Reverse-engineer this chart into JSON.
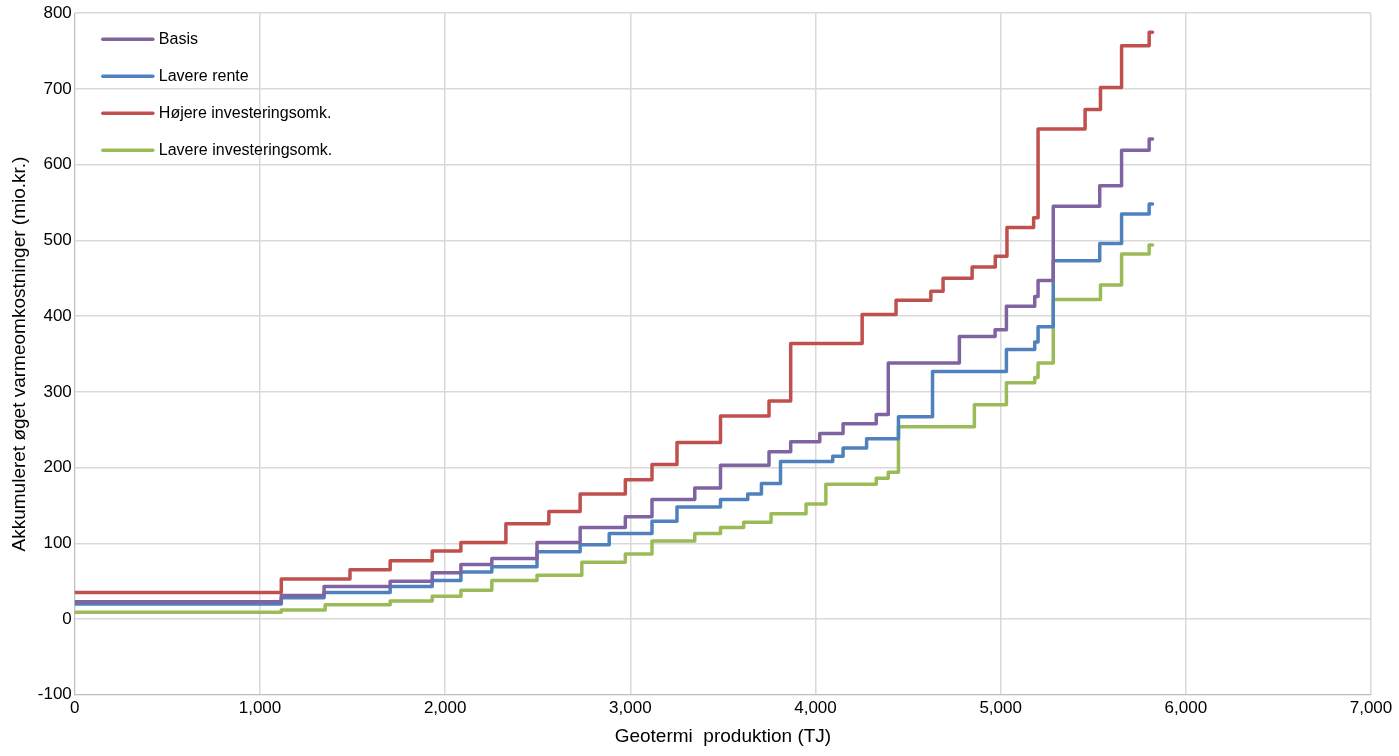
{
  "chart_data": {
    "type": "step",
    "xlabel": "Geotermi  produktion (TJ)",
    "ylabel": "Akkumuleret øget varmeomkostninger (mio.kr.)",
    "xlim": [
      0,
      7000
    ],
    "xticks": [
      0,
      {
        "value": 1000,
        "label": "1,000"
      },
      {
        "value": 2000,
        "label": "2,000"
      },
      {
        "value": 3000,
        "label": "3,000"
      },
      {
        "value": 4000,
        "label": "4,000"
      },
      {
        "value": 5000,
        "label": "5,000"
      },
      {
        "value": 6000,
        "label": "6,000"
      },
      {
        "value": 7000,
        "label": "7,000"
      }
    ],
    "ylim": [
      -100,
      800
    ],
    "yticks": [
      -100,
      0,
      100,
      200,
      300,
      400,
      500,
      600,
      700,
      800
    ],
    "grid": true,
    "legend": "top left",
    "marker": "none",
    "line_style": "solid",
    "series": [
      {
        "name": "Basis",
        "color": "#8064a2",
        "x": [
          0,
          1115,
          1346,
          1703,
          1930,
          2085,
          2252,
          2496,
          2729,
          2973,
          3117,
          3348,
          3487,
          3749,
          3866,
          4023,
          4149,
          4328,
          4393,
          4777,
          4970,
          5031,
          5184,
          5202,
          5284,
          5535,
          5653,
          5802,
          5820
        ],
        "values": [
          23,
          31,
          43,
          50,
          61,
          72,
          80,
          101,
          121,
          135,
          158,
          173,
          203,
          221,
          234,
          245,
          258,
          270,
          338,
          373,
          382,
          413,
          426,
          447,
          545,
          572,
          619,
          634,
          634
        ]
      },
      {
        "name": "Lavere rente",
        "color": "#4f81bd",
        "x": [
          0,
          1115,
          1346,
          1703,
          1930,
          2085,
          2252,
          2496,
          2729,
          2886,
          3117,
          3252,
          3487,
          3634,
          3708,
          3811,
          4093,
          4149,
          4276,
          4448,
          4632,
          5031,
          5184,
          5202,
          5284,
          5535,
          5653,
          5802,
          5820
        ],
        "values": [
          20,
          28,
          35,
          43,
          51,
          62,
          69,
          89,
          98,
          113,
          129,
          148,
          158,
          165,
          179,
          208,
          215,
          226,
          238,
          267,
          327,
          356,
          366,
          386,
          473,
          496,
          535,
          548,
          548
        ]
      },
      {
        "name": "Højere investeringsomk.",
        "color": "#c0504d",
        "x": [
          0,
          1115,
          1486,
          1703,
          1930,
          2085,
          2328,
          2560,
          2729,
          2973,
          3117,
          3252,
          3487,
          3749,
          3866,
          4252,
          4435,
          4623,
          4689,
          4846,
          4971,
          5034,
          5178,
          5202,
          5456,
          5539,
          5653,
          5802,
          5820
        ],
        "values": [
          35,
          53,
          65,
          77,
          90,
          101,
          126,
          142,
          165,
          184,
          204,
          233,
          268,
          288,
          364,
          402,
          421,
          433,
          450,
          465,
          479,
          517,
          530,
          647,
          673,
          702,
          757,
          775,
          775
        ]
      },
      {
        "name": "Lavere investeringsomk.",
        "color": "#9bbb59",
        "x": [
          0,
          1115,
          1352,
          1703,
          1930,
          2085,
          2252,
          2496,
          2738,
          2973,
          3117,
          3348,
          3487,
          3612,
          3760,
          3949,
          4056,
          4328,
          4393,
          4448,
          4858,
          5031,
          5184,
          5202,
          5284,
          5539,
          5653,
          5802,
          5820
        ],
        "values": [
          9,
          12,
          19,
          24,
          30,
          38,
          51,
          58,
          75,
          86,
          103,
          113,
          121,
          128,
          139,
          152,
          178,
          186,
          194,
          254,
          283,
          312,
          319,
          338,
          422,
          441,
          482,
          494,
          494
        ]
      }
    ]
  }
}
